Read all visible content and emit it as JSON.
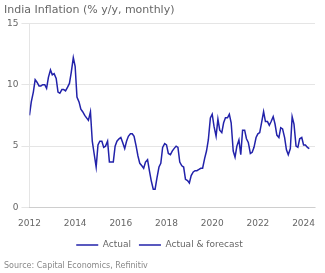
{
  "chart_data": {
    "type": "line",
    "title": "India Inflation (% y/y, monthly)",
    "annotations": [
      "Source: Capital Economics, Refinitiv"
    ],
    "x": [
      2012.0,
      2012.08,
      2012.17,
      2012.25,
      2012.33,
      2012.42,
      2012.5,
      2012.58,
      2012.67,
      2012.75,
      2012.83,
      2012.92,
      2013.0,
      2013.08,
      2013.17,
      2013.25,
      2013.33,
      2013.42,
      2013.5,
      2013.58,
      2013.67,
      2013.75,
      2013.83,
      2013.92,
      2014.0,
      2014.08,
      2014.17,
      2014.25,
      2014.33,
      2014.42,
      2014.5,
      2014.58,
      2014.67,
      2014.75,
      2014.83,
      2014.92,
      2015.0,
      2015.08,
      2015.17,
      2015.25,
      2015.33,
      2015.42,
      2015.5,
      2015.58,
      2015.67,
      2015.75,
      2015.83,
      2015.92,
      2016.0,
      2016.08,
      2016.17,
      2016.25,
      2016.33,
      2016.42,
      2016.5,
      2016.58,
      2016.67,
      2016.75,
      2016.83,
      2016.92,
      2017.0,
      2017.08,
      2017.17,
      2017.25,
      2017.33,
      2017.42,
      2017.5,
      2017.58,
      2017.67,
      2017.75,
      2017.83,
      2017.92,
      2018.0,
      2018.08,
      2018.17,
      2018.25,
      2018.33,
      2018.42,
      2018.5,
      2018.58,
      2018.67,
      2018.75,
      2018.83,
      2018.92,
      2019.0,
      2019.08,
      2019.17,
      2019.25,
      2019.33,
      2019.42,
      2019.5,
      2019.58,
      2019.67,
      2019.75,
      2019.83,
      2019.92,
      2020.0,
      2020.08,
      2020.17,
      2020.25,
      2020.33,
      2020.42,
      2020.5,
      2020.58,
      2020.67,
      2020.75,
      2020.83,
      2020.92,
      2021.0,
      2021.08,
      2021.17,
      2021.25,
      2021.33,
      2021.42,
      2021.5,
      2021.58,
      2021.67,
      2021.75,
      2021.83,
      2021.92,
      2022.0,
      2022.08,
      2022.17,
      2022.25,
      2022.33,
      2022.42,
      2022.5,
      2022.58,
      2022.67,
      2022.75,
      2022.83,
      2022.92,
      2023.0,
      2023.08,
      2023.17,
      2023.25,
      2023.33,
      2023.42,
      2023.5,
      2023.58,
      2023.67,
      2023.75,
      2023.83,
      2023.92,
      2024.0,
      2024.08,
      2024.17,
      2024.25
    ],
    "series": [
      {
        "name": "Actual",
        "color": "#2222AA",
        "line_style": "solid",
        "values": [
          7.5,
          8.6,
          9.4,
          10.4,
          10.2,
          9.9,
          9.9,
          10.0,
          10.0,
          9.7,
          10.6,
          11.2,
          10.8,
          10.9,
          10.5,
          9.4,
          9.3,
          9.6,
          9.6,
          9.5,
          9.8,
          10.1,
          11.0,
          12.2,
          11.5,
          9.0,
          8.6,
          8.0,
          7.8,
          7.5,
          7.3,
          7.1,
          7.8,
          5.4,
          4.4,
          3.3,
          5.1,
          5.4,
          5.4,
          4.9,
          5.0,
          5.4,
          3.7,
          3.7,
          3.7,
          5.0,
          5.4,
          5.6,
          5.7,
          5.3,
          4.8,
          5.4,
          5.8,
          6.0,
          6.0,
          5.8,
          5.0,
          4.2,
          3.6,
          3.4,
          3.2,
          3.7,
          3.9,
          3.0,
          2.2,
          1.5,
          1.5,
          2.4,
          3.3,
          3.6,
          4.9,
          5.2,
          5.1,
          4.4,
          4.3,
          4.6,
          4.8,
          5.0,
          4.9,
          3.7,
          3.4,
          3.3,
          2.3,
          2.2,
          2.0,
          2.6,
          2.9,
          3.0,
          3.0,
          3.1,
          3.2,
          3.2,
          4.0,
          4.6,
          5.5,
          7.3,
          7.6,
          6.6,
          5.8,
          7.2,
          6.3,
          6.1,
          6.9,
          7.3,
          7.3,
          7.6,
          6.9,
          4.6,
          4.1,
          5.0,
          5.5,
          4.3,
          6.3,
          6.3,
          5.6,
          5.3,
          4.4,
          4.5,
          4.9,
          5.7,
          6.0,
          6.1,
          7.0,
          7.8,
          7.0,
          7.0,
          6.7,
          7.0,
          7.4,
          6.8,
          5.9,
          5.7,
          6.5,
          6.4,
          5.7,
          4.7,
          4.3,
          4.8,
          7.4,
          6.8,
          5.0,
          4.9,
          5.6,
          5.7,
          5.1,
          5.1,
          4.9,
          4.8
        ]
      },
      {
        "name": "Actual & forecast",
        "color": "#2222AA",
        "line_style": "dashed",
        "values": [
          null,
          null,
          null,
          null,
          null,
          null,
          null,
          null,
          null,
          null,
          null,
          null,
          null,
          null,
          null,
          null,
          null,
          null,
          null,
          null,
          null,
          null,
          null,
          null,
          null,
          null,
          null,
          null,
          null,
          null,
          null,
          null,
          null,
          null,
          null,
          null,
          null,
          null,
          null,
          null,
          null,
          null,
          null,
          null,
          null,
          null,
          null,
          null,
          null,
          null,
          null,
          null,
          null,
          null,
          null,
          null,
          null,
          null,
          null,
          null,
          null,
          null,
          null,
          null,
          null,
          null,
          null,
          null,
          null,
          null,
          null,
          null,
          null,
          null,
          null,
          null,
          null,
          null,
          null,
          null,
          null,
          null,
          null,
          null,
          null,
          null,
          null,
          null,
          null,
          null,
          null,
          null,
          null,
          null,
          null,
          null,
          null,
          null,
          null,
          null,
          null,
          null,
          null,
          null,
          null,
          null,
          null,
          null,
          null,
          null,
          null,
          null,
          null,
          null,
          null,
          null,
          null,
          null,
          null,
          null,
          null,
          null,
          null,
          null,
          null,
          null,
          null,
          null,
          null,
          null,
          null,
          null,
          null,
          null,
          null,
          null,
          null,
          null,
          null,
          null,
          null,
          null,
          null,
          null,
          null,
          null,
          null,
          null
        ]
      }
    ],
    "xlim": [
      2012.0,
      2024.5
    ],
    "xticks": [
      2012,
      2014,
      2016,
      2018,
      2020,
      2022,
      2024
    ],
    "ylim": [
      0,
      15
    ],
    "yticks": [
      0,
      5,
      10,
      15
    ],
    "grid": true,
    "legend": "bottom"
  }
}
